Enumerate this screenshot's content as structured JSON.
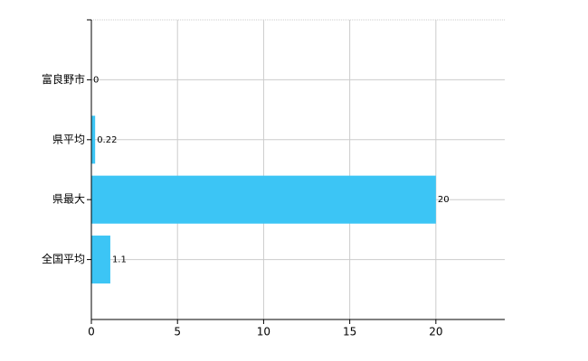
{
  "chart_data": {
    "type": "barh",
    "categories": [
      "富良野市",
      "県平均",
      "県最大",
      "全国平均"
    ],
    "values": [
      0,
      0.22,
      20,
      1.1
    ],
    "color": "#3cc5f5",
    "xlim": [
      0,
      24
    ],
    "xticks": [
      0,
      5,
      10,
      15,
      20
    ],
    "grid": true
  }
}
